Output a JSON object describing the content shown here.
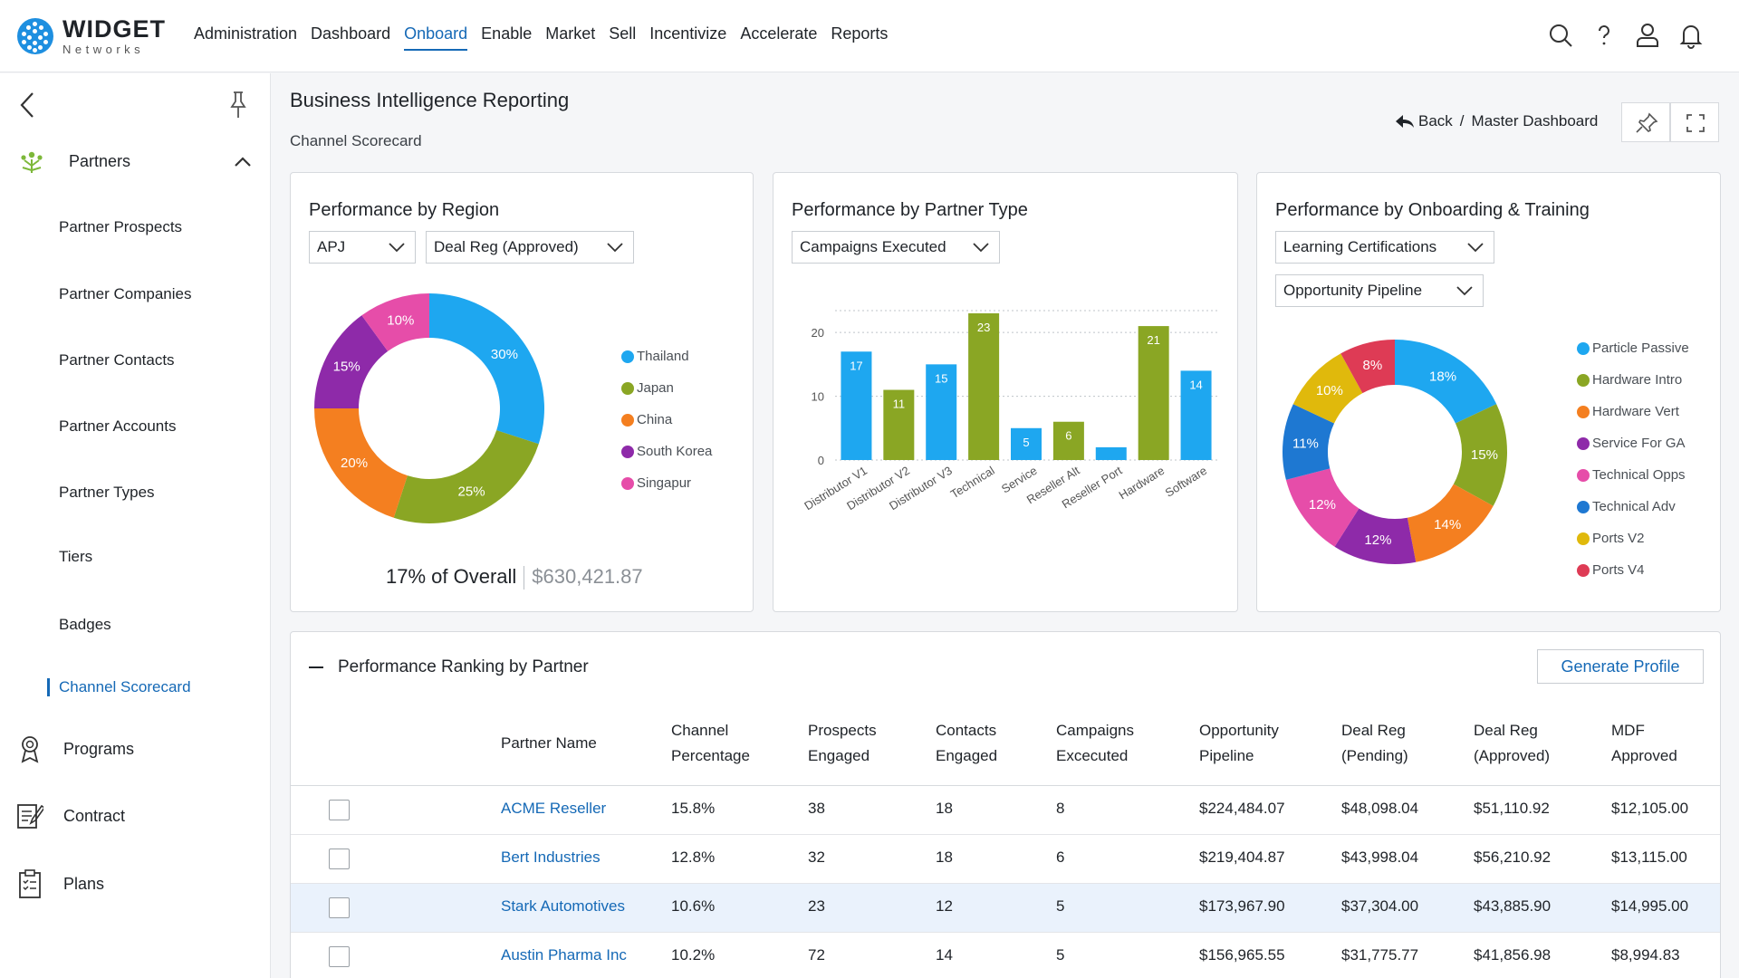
{
  "brand": {
    "name": "WIDGET",
    "sub": "Networks"
  },
  "nav": [
    "Administration",
    "Dashboard",
    "Onboard",
    "Enable",
    "Market",
    "Sell",
    "Incentivize",
    "Accelerate",
    "Reports"
  ],
  "nav_active": "Onboard",
  "sidebar": {
    "section": "Partners",
    "items": [
      "Partner Prospects",
      "Partner Companies",
      "Partner Contacts",
      "Partner Accounts",
      "Partner Types",
      "Tiers",
      "Badges",
      "Channel Scorecard"
    ],
    "active": "Channel Scorecard",
    "other_sections": [
      "Programs",
      "Contract",
      "Plans"
    ]
  },
  "page": {
    "title": "Business Intelligence Reporting",
    "subtitle": "Channel Scorecard",
    "back": "Back",
    "crumb": "Master Dashboard"
  },
  "region_card": {
    "title": "Performance by Region",
    "dropdowns": [
      "APJ",
      "Deal Reg (Approved)"
    ],
    "overall_text": "17% of Overall",
    "overall_amount": "$630,421.87"
  },
  "type_card": {
    "title": "Performance by Partner Type",
    "dropdowns": [
      "Campaigns Executed"
    ]
  },
  "onboard_card": {
    "title": "Performance by Onboarding & Training",
    "dropdowns": [
      "Learning Certifications",
      "Opportunity Pipeline"
    ]
  },
  "chart_data": [
    {
      "type": "pie",
      "title": "Performance by Region",
      "labels": [
        "Thailand",
        "Japan",
        "China",
        "South Korea",
        "Singapur"
      ],
      "values": [
        30,
        25,
        20,
        15,
        10
      ],
      "value_labels": [
        "30%",
        "25%",
        "20%",
        "15%",
        "10%"
      ],
      "colors": [
        "#1ea7f0",
        "#8aa624",
        "#f47f20",
        "#8e2aa9",
        "#e64da9"
      ],
      "donut": true,
      "legend": "right"
    },
    {
      "type": "bar",
      "title": "Performance by Partner Type",
      "categories": [
        "Distributor V1",
        "Distributor V2",
        "Distributor V3",
        "Technical",
        "Service",
        "Reseller Alt",
        "Reseller Port",
        "Hardware",
        "Software"
      ],
      "values": [
        17,
        11,
        15,
        23,
        5,
        6,
        2,
        21,
        14
      ],
      "value_labels": [
        "17",
        "11",
        "15",
        "23",
        "5",
        "6",
        "",
        "21",
        "14"
      ],
      "colors": [
        "#1ea7f0",
        "#8aa624",
        "#1ea7f0",
        "#8aa624",
        "#1ea7f0",
        "#8aa624",
        "#1ea7f0",
        "#8aa624",
        "#1ea7f0"
      ],
      "yticks": [
        "0",
        "10",
        "20"
      ],
      "ylim": [
        0,
        23
      ],
      "grid": true
    },
    {
      "type": "pie",
      "title": "Performance by Onboarding & Training",
      "labels": [
        "Particle Passive",
        "Hardware Intro",
        "Hardware Vert",
        "Service For GA",
        "Technical Opps",
        "Technical Adv",
        "Ports V2",
        "Ports V4"
      ],
      "values": [
        18,
        15,
        14,
        12,
        12,
        11,
        10,
        8
      ],
      "value_labels": [
        "18%",
        "15%",
        "14%",
        "12%",
        "12%",
        "11%",
        "10%",
        "8%"
      ],
      "colors": [
        "#1ea7f0",
        "#8aa624",
        "#f47f20",
        "#8e2aa9",
        "#e64da9",
        "#1e78d2",
        "#e0b90c",
        "#de3b55"
      ],
      "donut": true,
      "legend": "right"
    }
  ],
  "table": {
    "title": "Performance Ranking by Partner",
    "button": "Generate Profile",
    "headers": [
      [
        "Partner Name"
      ],
      [
        "Channel",
        "Percentage"
      ],
      [
        "Prospects",
        "Engaged"
      ],
      [
        "Contacts",
        "Engaged"
      ],
      [
        "Campaigns",
        "Excecuted"
      ],
      [
        "Opportunity",
        "Pipeline"
      ],
      [
        "Deal Reg",
        "(Pending)"
      ],
      [
        "Deal Reg",
        "(Approved)"
      ],
      [
        "MDF",
        "Approved"
      ]
    ],
    "rows": [
      [
        "ACME Reseller",
        "15.8%",
        "38",
        "18",
        "8",
        "$224,484.07",
        "$48,098.04",
        "$51,110.92",
        "$12,105.00"
      ],
      [
        "Bert Industries",
        "12.8%",
        "32",
        "18",
        "6",
        "$219,404.87",
        "$43,998.04",
        "$56,210.92",
        "$13,115.00"
      ],
      [
        "Stark Automotives",
        "10.6%",
        "23",
        "12",
        "5",
        "$173,967.90",
        "$37,304.00",
        "$43,885.90",
        "$14,995.00"
      ],
      [
        "Austin Pharma Inc",
        "10.2%",
        "72",
        "14",
        "5",
        "$156,965.55",
        "$31,775.77",
        "$41,856.98",
        "$8,994.83"
      ]
    ],
    "highlight_row": 2
  }
}
